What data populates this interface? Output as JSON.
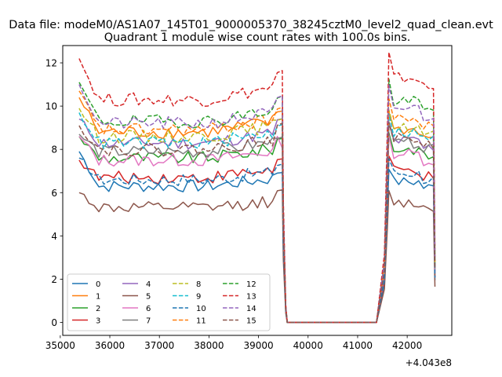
{
  "chart_data": {
    "type": "line",
    "suptitle": "Data file: modeM0/AS1A07_145T01_9000005370_38245cztM0_level2_quad_clean.evt",
    "title": "Quadrant 1 module wise count rates with 100.0s bins.",
    "xlabel": "",
    "ylabel": "",
    "x_offset_label": "+4.043e8",
    "xlim": [
      35050,
      42900
    ],
    "ylim": [
      -0.6,
      12.8
    ],
    "x_ticks": [
      35000,
      36000,
      37000,
      38000,
      39000,
      40000,
      41000,
      42000
    ],
    "x_tick_labels": [
      "35000",
      "36000",
      "37000",
      "38000",
      "39000",
      "40000",
      "41000",
      "42000"
    ],
    "y_ticks": [
      0,
      2,
      4,
      6,
      8,
      10,
      12
    ],
    "y_tick_labels": [
      "0",
      "2",
      "4",
      "6",
      "8",
      "10",
      "12"
    ],
    "grid": false,
    "legend_position": "lower-left",
    "legend_columns": 4,
    "x_segments": {
      "observation_1": {
        "start": 35380,
        "end": 39480,
        "step": 100
      },
      "gap_drop": [
        39500,
        39550
      ],
      "gap": {
        "start": 39580,
        "end": 41470,
        "step": 100
      },
      "observation_2": {
        "start": 41630,
        "end": 42530,
        "step": 100
      },
      "final_drop": 42560
    },
    "series": [
      {
        "name": "0",
        "color": "#1f77b4",
        "dash": "solid",
        "level1": 6.3,
        "level2": 6.5,
        "first": 7.9
      },
      {
        "name": "1",
        "color": "#ff7f0e",
        "dash": "solid",
        "level1": 8.8,
        "level2": 8.9,
        "first": 10.4
      },
      {
        "name": "2",
        "color": "#2ca02c",
        "dash": "solid",
        "level1": 7.6,
        "level2": 8.0,
        "first": 8.6
      },
      {
        "name": "3",
        "color": "#d62728",
        "dash": "solid",
        "level1": 6.7,
        "level2": 7.0,
        "first": 7.5
      },
      {
        "name": "4",
        "color": "#9467bd",
        "dash": "solid",
        "level1": 8.3,
        "level2": 8.4,
        "first": 9.4
      },
      {
        "name": "5",
        "color": "#8c564b",
        "dash": "solid",
        "level1": 5.3,
        "level2": 5.5,
        "first": 6.0
      },
      {
        "name": "6",
        "color": "#e377c2",
        "dash": "solid",
        "level1": 7.5,
        "level2": 7.8,
        "first": 8.6
      },
      {
        "name": "7",
        "color": "#7f7f7f",
        "dash": "solid",
        "level1": 7.9,
        "level2": 8.3,
        "first": 8.7
      },
      {
        "name": "8",
        "color": "#bcbd22",
        "dash": "dashed",
        "level1": 8.6,
        "level2": 9.0,
        "first": 9.9
      },
      {
        "name": "9",
        "color": "#17becf",
        "dash": "dashed",
        "level1": 8.3,
        "level2": 8.8,
        "first": 9.7
      },
      {
        "name": "10",
        "color": "#1f77b4",
        "dash": "dashed",
        "level1": 6.6,
        "level2": 6.9,
        "first": 7.6
      },
      {
        "name": "11",
        "color": "#ff7f0e",
        "dash": "dashed",
        "level1": 8.9,
        "level2": 9.4,
        "first": 10.7
      },
      {
        "name": "12",
        "color": "#2ca02c",
        "dash": "dashed",
        "level1": 9.3,
        "level2": 10.2,
        "first": 11.1
      },
      {
        "name": "13",
        "color": "#d62728",
        "dash": "dashed",
        "level1": 10.3,
        "level2": 11.3,
        "first": 12.2
      },
      {
        "name": "14",
        "color": "#9467bd",
        "dash": "dashed",
        "level1": 9.2,
        "level2": 9.9,
        "first": 11.0
      },
      {
        "name": "15",
        "color": "#8c564b",
        "dash": "dashed",
        "level1": 8.0,
        "level2": 8.5,
        "first": 9.1
      }
    ]
  }
}
